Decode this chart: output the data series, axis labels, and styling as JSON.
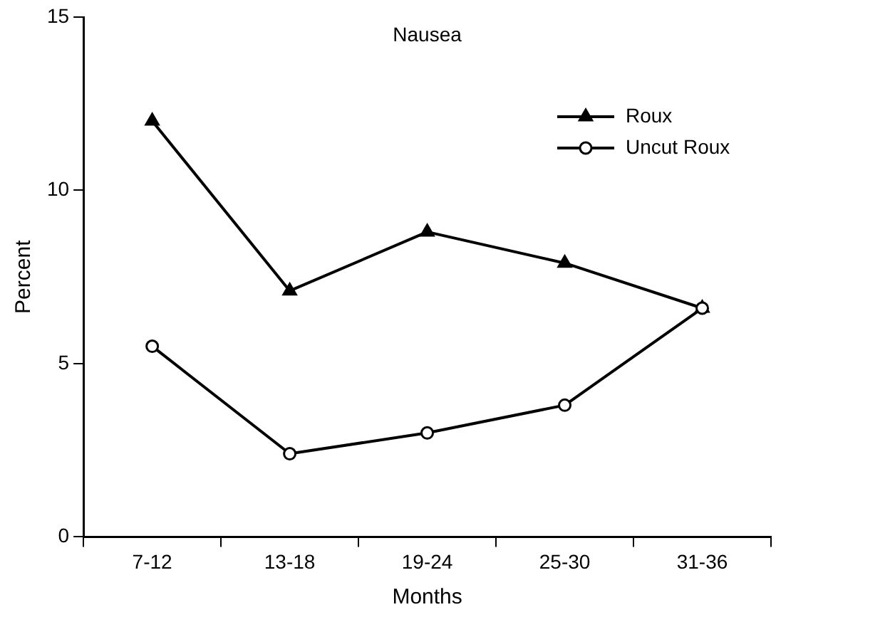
{
  "chart_data": {
    "type": "line",
    "title": "Nausea",
    "xlabel": "Months",
    "ylabel": "Percent",
    "categories": [
      "7-12",
      "13-18",
      "19-24",
      "25-30",
      "31-36"
    ],
    "series": [
      {
        "name": "Roux",
        "color": "#000000",
        "marker": "triangle",
        "values": [
          12,
          7.1,
          8.8,
          7.9,
          6.6
        ]
      },
      {
        "name": "Uncut Roux",
        "color": "#000000",
        "marker": "circle",
        "values": [
          5.5,
          2.4,
          3.0,
          3.8,
          6.6
        ]
      }
    ],
    "ylim": [
      0,
      15
    ],
    "yticks": [
      0,
      5,
      10,
      15
    ],
    "grid": false,
    "legend": "top right",
    "line_style": "solid"
  }
}
